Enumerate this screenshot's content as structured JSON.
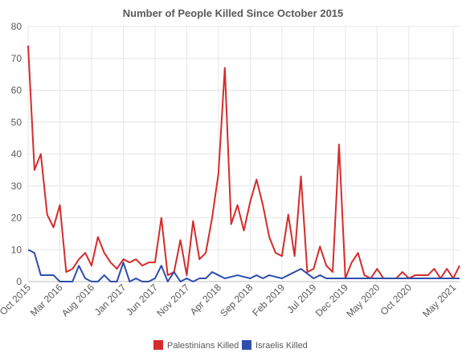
{
  "chart_data": {
    "type": "line",
    "title": "Number of People Killed Since October 2015",
    "ylim": [
      0,
      80
    ],
    "yticks": [
      "0",
      "10",
      "20",
      "30",
      "40",
      "50",
      "60",
      "70",
      "80"
    ],
    "xticks": [
      {
        "label": "Oct 2015",
        "index": 0
      },
      {
        "label": "Mar 2016",
        "index": 5
      },
      {
        "label": "Aug 2016",
        "index": 10
      },
      {
        "label": "Jan 2017",
        "index": 15
      },
      {
        "label": "Jun 2017",
        "index": 20
      },
      {
        "label": "Nov 2017",
        "index": 25
      },
      {
        "label": "Apr 2018",
        "index": 30
      },
      {
        "label": "Sep 2018",
        "index": 35
      },
      {
        "label": "Feb 2019",
        "index": 40
      },
      {
        "label": "Jul 2019",
        "index": 45
      },
      {
        "label": "Dec 2019",
        "index": 50
      },
      {
        "label": "May 2020",
        "index": 55
      },
      {
        "label": "Oct 2020",
        "index": 60
      },
      {
        "label": "May 2021",
        "index": 67
      }
    ],
    "x_range": [
      "Oct 2015",
      "May 2021"
    ],
    "grid": true,
    "legend_position": "bottom",
    "series": [
      {
        "name": "Palestinians Killed",
        "color": "#d62b2b",
        "values": [
          74,
          35,
          40,
          21,
          17,
          24,
          3,
          4,
          7,
          9,
          5,
          14,
          9,
          6,
          4,
          7,
          6,
          7,
          5,
          6,
          6,
          20,
          2,
          3,
          13,
          2,
          19,
          7,
          9,
          20,
          34,
          67,
          18,
          24,
          16,
          25,
          32,
          24,
          14,
          9,
          8,
          21,
          8,
          33,
          3,
          4,
          11,
          5,
          3,
          43,
          1,
          6,
          9,
          2,
          1,
          4,
          1,
          1,
          1,
          3,
          1,
          2,
          2,
          2,
          4,
          1,
          4,
          1,
          5
        ]
      },
      {
        "name": "Israelis Killed",
        "color": "#2e4ead",
        "values": [
          10,
          9,
          2,
          2,
          2,
          0,
          0,
          0,
          5,
          1,
          0,
          0,
          2,
          0,
          0,
          6,
          0,
          1,
          0,
          0,
          1,
          5,
          0,
          3,
          0,
          1,
          0,
          1,
          1,
          3,
          2,
          1,
          1.5,
          2,
          1.5,
          1,
          2,
          1,
          2,
          1.5,
          1,
          2,
          3,
          4,
          2.5,
          1,
          2,
          1,
          1,
          1,
          1,
          1,
          1,
          1,
          1,
          1,
          1,
          1,
          1,
          1,
          1,
          1,
          1,
          1,
          1,
          1,
          1,
          1,
          1
        ]
      }
    ]
  }
}
